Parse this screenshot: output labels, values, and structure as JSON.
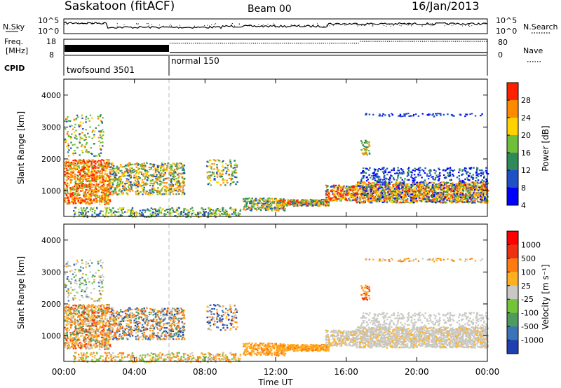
{
  "header": {
    "title": "Saskatoon (fitACF)",
    "beam": "Beam 00",
    "date": "16/Jan/2013"
  },
  "strips": {
    "nsky_label": "N.Sky",
    "nsky_ticks": [
      "10^5",
      "10^0"
    ],
    "nsky_right_ticks": [
      "10^5",
      "10^0"
    ],
    "nsearch_label": "N.Search",
    "freq_label": "Freq.",
    "freq_unit": "[MHz]",
    "freq_ticks": [
      "18",
      "8"
    ],
    "nave_label": "Nave",
    "nave_ticks": [
      "80",
      "0"
    ],
    "cpid_label": "CPID",
    "cpid_segments": [
      {
        "label": "twofsound 3501",
        "start_hour": 0,
        "end_hour": 6
      },
      {
        "label": "normal 150",
        "start_hour": 6,
        "end_hour": 24
      }
    ]
  },
  "chart_data": [
    {
      "type": "heatmap",
      "name": "power-panel",
      "ylabel": "Slant Range [km]",
      "yticks": [
        "4000",
        "3000",
        "2000",
        "1000"
      ],
      "ylim": [
        200,
        4500
      ],
      "xlim_hours": [
        0,
        24
      ],
      "colorbar_label": "Power [dB]",
      "colorbar_ticks": [
        "28",
        "24",
        "20",
        "16",
        "12",
        "8",
        "4"
      ],
      "colorbar_colors": [
        "#0000ff",
        "#2050c8",
        "#2e8b57",
        "#6fbf3a",
        "#ffd200",
        "#ff8a00",
        "#ff2000"
      ]
    },
    {
      "type": "heatmap",
      "name": "velocity-panel",
      "ylabel": "Slant Range [km]",
      "yticks": [
        "4000",
        "3000",
        "2000",
        "1000"
      ],
      "ylim": [
        200,
        4500
      ],
      "xlim_hours": [
        0,
        24
      ],
      "xticks": [
        "00:00",
        "04:00",
        "08:00",
        "12:00",
        "16:00",
        "20:00",
        "00:00"
      ],
      "xlabel": "Time UT",
      "colorbar_label": "Velocity [m s⁻¹]",
      "colorbar_ticks": [
        "1000",
        "500",
        "100",
        "25",
        "-25",
        "-100",
        "-500",
        "-1000"
      ],
      "colorbar_colors": [
        "#1d3fb0",
        "#3a75b8",
        "#4f9a5e",
        "#74c43a",
        "#c8c8c4",
        "#ffb020",
        "#ff7a10",
        "#ee3010",
        "#ff0000"
      ]
    }
  ]
}
